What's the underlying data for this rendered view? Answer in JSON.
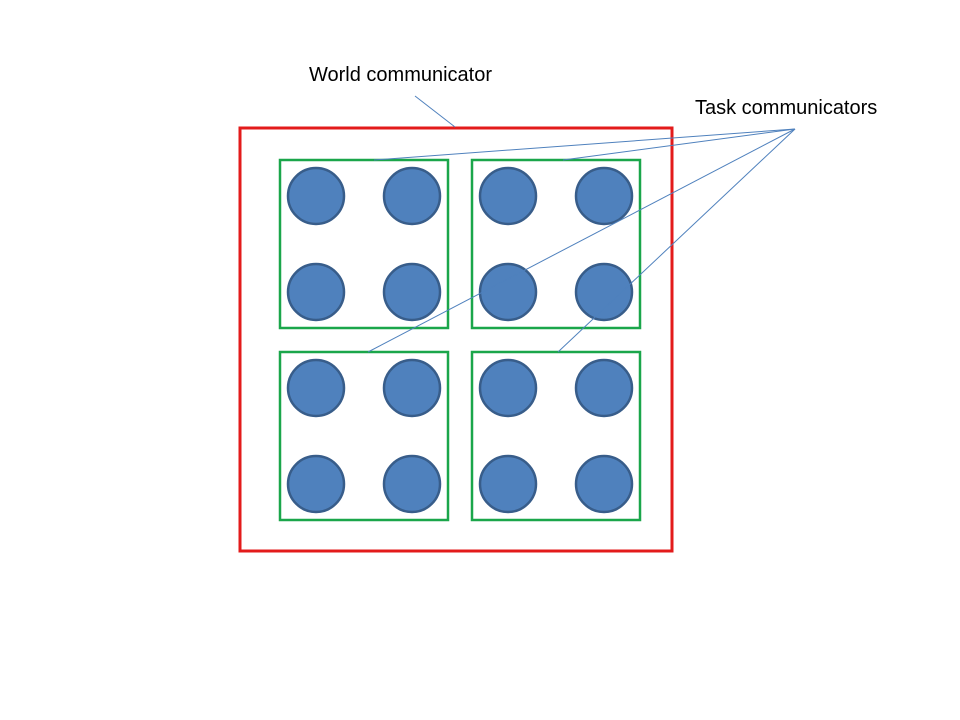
{
  "labels": {
    "world": "World communicator",
    "task": "Task communicators"
  },
  "colors": {
    "world_border": "#e31b1b",
    "task_border": "#1aa64a",
    "process_fill": "#4f81bd",
    "process_stroke": "#385d8a",
    "leader_line": "#4f81bd",
    "text": "#000000"
  },
  "structure": {
    "task_communicators": 4,
    "processes_per_task": 4
  }
}
